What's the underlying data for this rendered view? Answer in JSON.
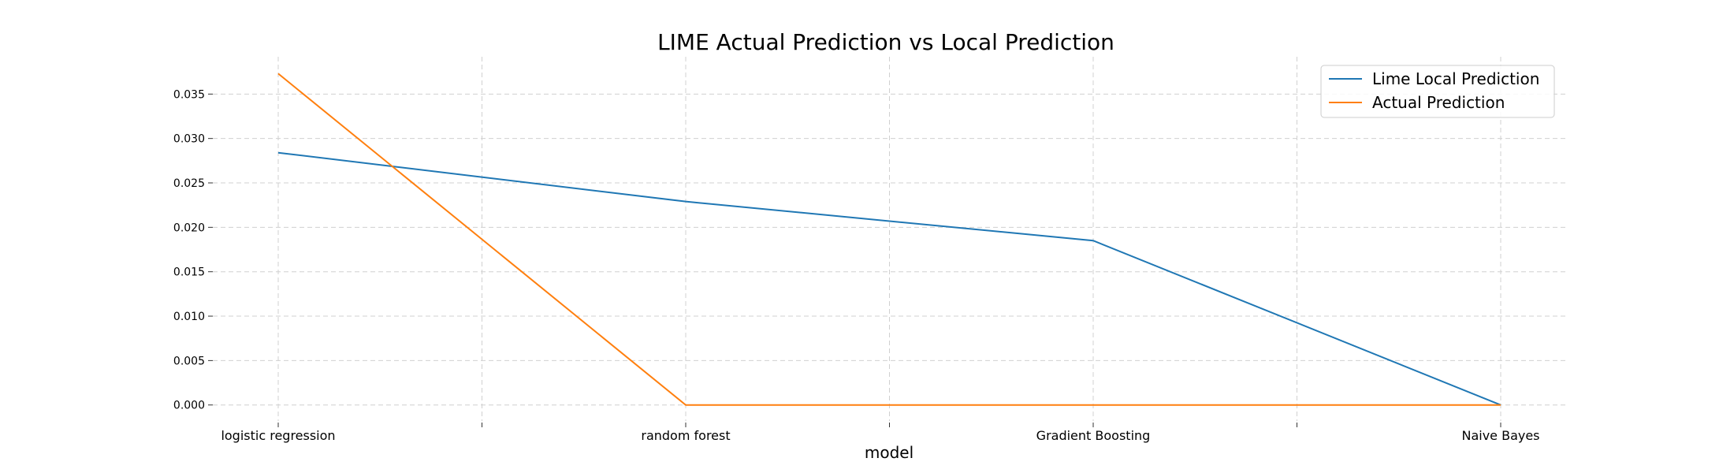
{
  "chart_data": {
    "type": "line",
    "title": "LIME Actual Prediction vs Local Prediction",
    "xlabel": "model",
    "ylabel": "",
    "categories": [
      "logistic regression",
      "random forest",
      "Gradient Boosting",
      "Naive Bayes"
    ],
    "series": [
      {
        "name": "Lime Local Prediction",
        "color": "#1f77b4",
        "values": [
          0.0284,
          0.0229,
          0.0185,
          0.0
        ]
      },
      {
        "name": "Actual Prediction",
        "color": "#ff7f0e",
        "values": [
          0.0373,
          0.0,
          0.0,
          0.0
        ]
      }
    ],
    "ylim": [
      -0.0018,
      0.0392
    ],
    "yticks": [
      "0.000",
      "0.005",
      "0.010",
      "0.015",
      "0.020",
      "0.025",
      "0.030",
      "0.035"
    ],
    "grid": true,
    "legend_position": "top-right"
  }
}
